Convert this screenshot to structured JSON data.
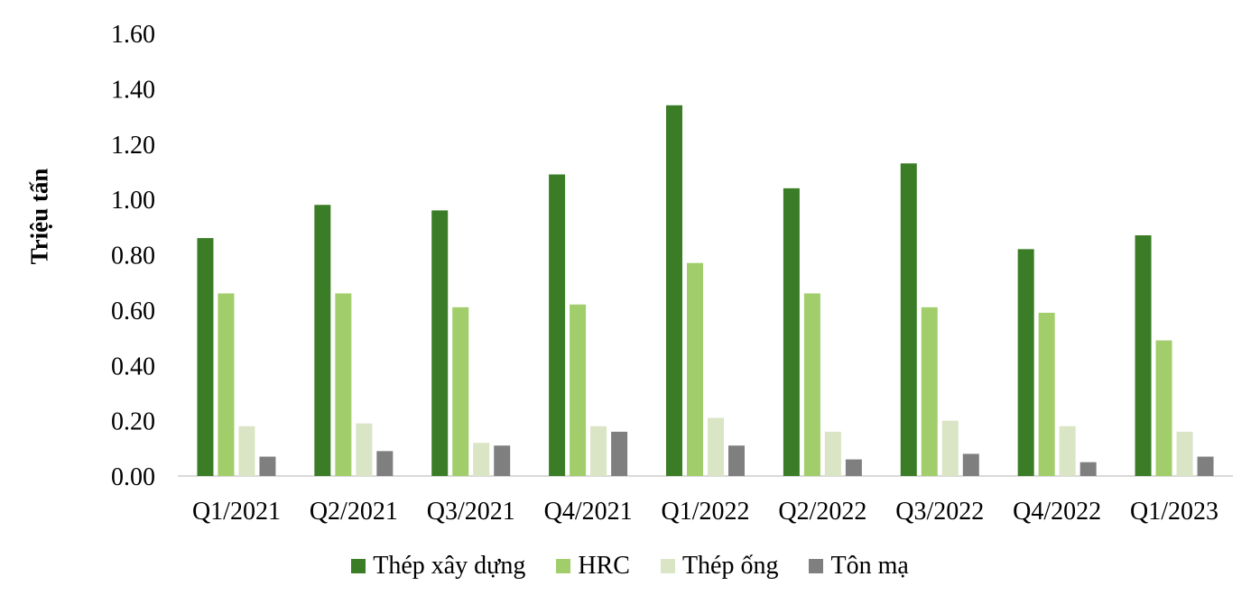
{
  "chart_data": {
    "type": "bar",
    "title": "",
    "xlabel": "",
    "ylabel": "Triệu tấn",
    "ylim": [
      0,
      1.6
    ],
    "yticks": [
      "0.00",
      "0.20",
      "0.40",
      "0.60",
      "0.80",
      "1.00",
      "1.20",
      "1.40",
      "1.60"
    ],
    "grid": false,
    "legend_position": "bottom",
    "categories": [
      "Q1/2021",
      "Q2/2021",
      "Q3/2021",
      "Q4/2021",
      "Q1/2022",
      "Q2/2022",
      "Q3/2022",
      "Q4/2022",
      "Q1/2023"
    ],
    "series": [
      {
        "name": "Thép xây dựng",
        "color": "#3a7d26",
        "values": [
          0.86,
          0.98,
          0.96,
          1.09,
          1.34,
          1.04,
          1.13,
          0.82,
          0.87
        ]
      },
      {
        "name": "HRC",
        "color": "#a2cd6b",
        "values": [
          0.66,
          0.66,
          0.61,
          0.62,
          0.77,
          0.66,
          0.61,
          0.59,
          0.49
        ]
      },
      {
        "name": "Thép ống",
        "color": "#d9e5c4",
        "values": [
          0.18,
          0.19,
          0.12,
          0.18,
          0.21,
          0.16,
          0.2,
          0.18,
          0.16
        ]
      },
      {
        "name": "Tôn mạ",
        "color": "#7f7f7f",
        "values": [
          0.07,
          0.09,
          0.11,
          0.16,
          0.11,
          0.06,
          0.08,
          0.05,
          0.07
        ]
      }
    ]
  }
}
